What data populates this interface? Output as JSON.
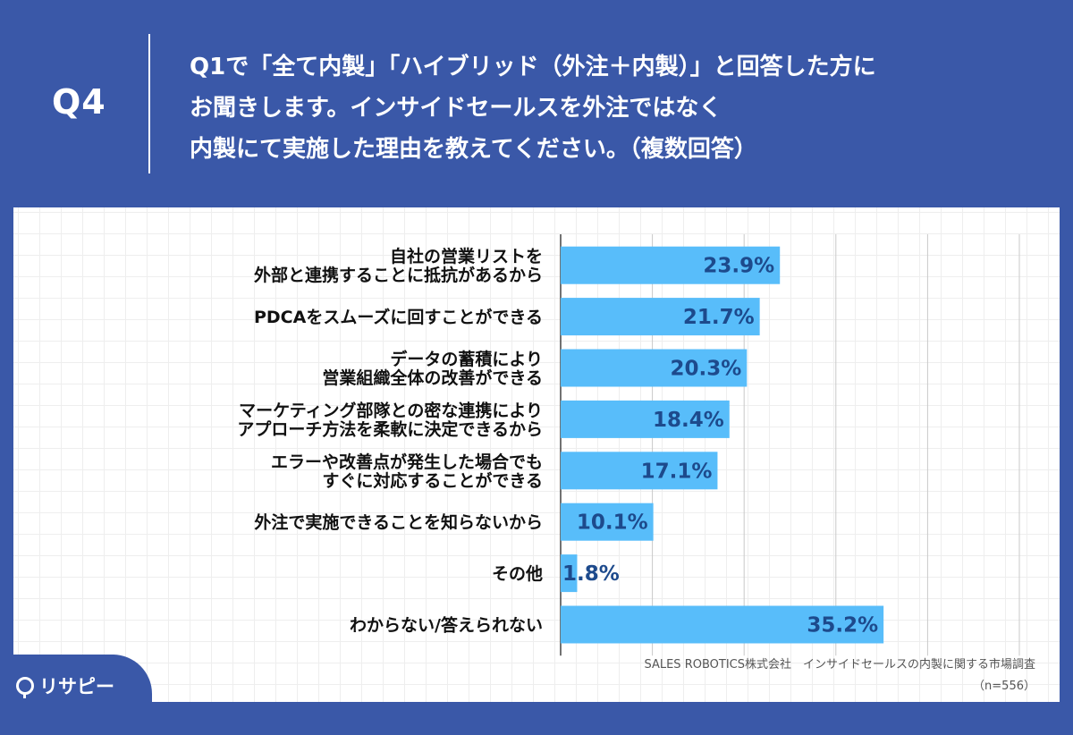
{
  "header": {
    "q_label": "Q4",
    "question_lines": [
      "Q1で「全て内製」「ハイブリッド（外注＋内製）」と回答した方に",
      "お聞きします。インサイドセールスを外注ではなく",
      "内製にて実施した理由を教えてください。（複数回答）"
    ]
  },
  "footer": {
    "source": "SALES ROBOTICS株式会社　インサイドセールスの内製に関する市場調査",
    "sample": "（n=556）",
    "logo_text": "リサピー"
  },
  "colors": {
    "bar": "#58bdfa",
    "value_text": "#1d4a8c",
    "background": "#3a58a8"
  },
  "chart_data": {
    "type": "bar",
    "orientation": "horizontal",
    "categories": [
      [
        "自社の営業リストを",
        "外部と連携することに抵抗があるから"
      ],
      [
        "PDCAをスムーズに回すことができる"
      ],
      [
        "データの蓄積により",
        "営業組織全体の改善ができる"
      ],
      [
        "マーケティング部隊との密な連携により",
        "アプローチ方法を柔軟に決定できるから"
      ],
      [
        "エラーや改善点が発生した場合でも",
        "すぐに対応することができる"
      ],
      [
        "外注で実施できることを知らないから"
      ],
      [
        "その他"
      ],
      [
        "わからない/答えられない"
      ]
    ],
    "values": [
      23.9,
      21.7,
      20.3,
      18.4,
      17.1,
      10.1,
      1.8,
      35.2
    ],
    "value_labels": [
      "23.9%",
      "21.7%",
      "20.3%",
      "18.4%",
      "17.1%",
      "10.1%",
      "1.8%",
      "35.2%"
    ],
    "xlim": [
      0,
      50
    ],
    "gridlines": [
      10,
      20,
      30,
      40,
      50
    ]
  }
}
